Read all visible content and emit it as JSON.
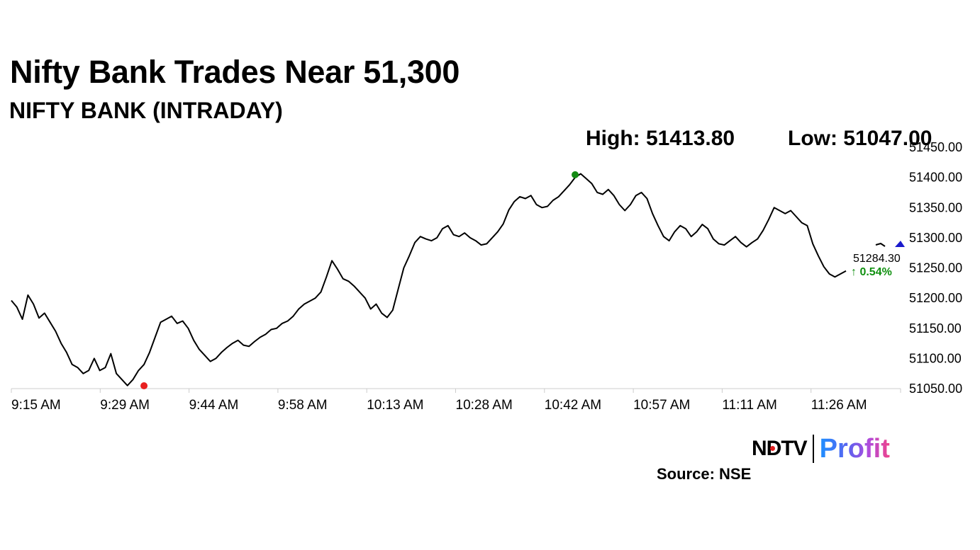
{
  "headline": "Nifty Bank Trades Near 51,300",
  "subtitle": "NIFTY BANK (INTRADAY)",
  "stats": {
    "high": "High: 51413.80",
    "low": "Low: 51047.00"
  },
  "last": {
    "price": "51284.30",
    "change": "↑ 0.54%"
  },
  "logo": {
    "ndtv": "NDTV",
    "profit": "Profit"
  },
  "source": "Source: NSE",
  "colors": {
    "line": "#000000",
    "low_marker": "#e82020",
    "high_marker": "#138a13",
    "last_marker": "#1a1acc",
    "change": "#109010",
    "axis": "#cccccc"
  },
  "chart_data": {
    "type": "line",
    "title": "NIFTY BANK (INTRADAY)",
    "xlabel": "",
    "ylabel": "",
    "x_ticks": [
      "9:15 AM",
      "9:29 AM",
      "9:44 AM",
      "9:58 AM",
      "10:13 AM",
      "10:28 AM",
      "10:42 AM",
      "10:57 AM",
      "11:11 AM",
      "11:26 AM"
    ],
    "y_ticks": [
      "51050.00",
      "51100.00",
      "51150.00",
      "51200.00",
      "51250.00",
      "51300.00",
      "51350.00",
      "51400.00",
      "51450.00"
    ],
    "ylim": [
      51050,
      51450
    ],
    "x_unit": "minutes after 9:15 AM",
    "xlim": [
      0,
      151
    ],
    "series": [
      {
        "values": [
          [
            0,
            51196
          ],
          [
            1,
            51185
          ],
          [
            2,
            51165
          ],
          [
            3,
            51205
          ],
          [
            4,
            51190
          ],
          [
            5,
            51167
          ],
          [
            6,
            51175
          ],
          [
            7,
            51160
          ],
          [
            8,
            51145
          ],
          [
            9,
            51125
          ],
          [
            10,
            51110
          ],
          [
            11,
            51090
          ],
          [
            12,
            51085
          ],
          [
            13,
            51075
          ],
          [
            14,
            51080
          ],
          [
            15,
            51100
          ],
          [
            16,
            51080
          ],
          [
            17,
            51085
          ],
          [
            18,
            51108
          ],
          [
            19,
            51075
          ],
          [
            20,
            51065
          ],
          [
            21,
            51055
          ],
          [
            22,
            51065
          ],
          [
            23,
            51080
          ],
          [
            24,
            51090
          ],
          [
            25,
            51110
          ],
          [
            26,
            51135
          ],
          [
            27,
            51160
          ],
          [
            28,
            51165
          ],
          [
            29,
            51170
          ],
          [
            30,
            51158
          ],
          [
            31,
            51162
          ],
          [
            32,
            51150
          ],
          [
            33,
            51130
          ],
          [
            34,
            51115
          ],
          [
            35,
            51105
          ],
          [
            36,
            51095
          ],
          [
            37,
            51100
          ],
          [
            38,
            51110
          ],
          [
            39,
            51118
          ],
          [
            40,
            51125
          ],
          [
            41,
            51130
          ],
          [
            42,
            51122
          ],
          [
            43,
            51120
          ],
          [
            44,
            51128
          ],
          [
            45,
            51135
          ],
          [
            46,
            51140
          ],
          [
            47,
            51148
          ],
          [
            48,
            51150
          ],
          [
            49,
            51158
          ],
          [
            50,
            51162
          ],
          [
            51,
            51170
          ],
          [
            52,
            51182
          ],
          [
            53,
            51190
          ],
          [
            54,
            51195
          ],
          [
            55,
            51200
          ],
          [
            56,
            51210
          ],
          [
            57,
            51235
          ],
          [
            58,
            51262
          ],
          [
            59,
            51248
          ],
          [
            60,
            51232
          ],
          [
            61,
            51228
          ],
          [
            62,
            51220
          ],
          [
            63,
            51210
          ],
          [
            64,
            51200
          ],
          [
            65,
            51182
          ],
          [
            66,
            51190
          ],
          [
            67,
            51175
          ],
          [
            68,
            51168
          ],
          [
            69,
            51180
          ],
          [
            70,
            51215
          ],
          [
            71,
            51250
          ],
          [
            72,
            51270
          ],
          [
            73,
            51292
          ],
          [
            74,
            51302
          ],
          [
            75,
            51298
          ],
          [
            76,
            51295
          ],
          [
            77,
            51300
          ],
          [
            78,
            51315
          ],
          [
            79,
            51320
          ],
          [
            80,
            51305
          ],
          [
            81,
            51302
          ],
          [
            82,
            51308
          ],
          [
            83,
            51300
          ],
          [
            84,
            51295
          ],
          [
            85,
            51288
          ],
          [
            86,
            51290
          ],
          [
            87,
            51300
          ],
          [
            88,
            51310
          ],
          [
            89,
            51323
          ],
          [
            90,
            51346
          ],
          [
            91,
            51360
          ],
          [
            92,
            51368
          ],
          [
            93,
            51365
          ],
          [
            94,
            51370
          ],
          [
            95,
            51355
          ],
          [
            96,
            51350
          ],
          [
            97,
            51352
          ],
          [
            98,
            51362
          ],
          [
            99,
            51368
          ],
          [
            100,
            51378
          ],
          [
            101,
            51388
          ],
          [
            102,
            51400
          ],
          [
            103,
            51406
          ],
          [
            104,
            51398
          ],
          [
            105,
            51390
          ],
          [
            106,
            51375
          ],
          [
            107,
            51372
          ],
          [
            108,
            51380
          ],
          [
            109,
            51370
          ],
          [
            110,
            51355
          ],
          [
            111,
            51345
          ],
          [
            112,
            51355
          ],
          [
            113,
            51370
          ],
          [
            114,
            51375
          ],
          [
            115,
            51365
          ],
          [
            116,
            51340
          ],
          [
            117,
            51320
          ],
          [
            118,
            51302
          ],
          [
            119,
            51295
          ],
          [
            120,
            51310
          ],
          [
            121,
            51320
          ],
          [
            122,
            51315
          ],
          [
            123,
            51302
          ],
          [
            124,
            51310
          ],
          [
            125,
            51322
          ],
          [
            126,
            51315
          ],
          [
            127,
            51298
          ],
          [
            128,
            51290
          ],
          [
            129,
            51288
          ],
          [
            130,
            51295
          ],
          [
            131,
            51302
          ],
          [
            132,
            51292
          ],
          [
            133,
            51285
          ],
          [
            134,
            51292
          ],
          [
            135,
            51298
          ],
          [
            136,
            51312
          ],
          [
            137,
            51330
          ],
          [
            138,
            51350
          ],
          [
            139,
            51345
          ],
          [
            140,
            51340
          ],
          [
            141,
            51345
          ],
          [
            142,
            51335
          ],
          [
            143,
            51325
          ],
          [
            144,
            51320
          ],
          [
            145,
            51290
          ],
          [
            146,
            51270
          ],
          [
            147,
            51252
          ],
          [
            148,
            51240
          ],
          [
            149,
            51235
          ],
          [
            150,
            51240
          ],
          [
            151,
            51245
          ]
        ]
      }
    ],
    "high": {
      "label": "High",
      "value": 51413.8,
      "x": 102
    },
    "low": {
      "label": "Low",
      "value": 51047.0,
      "x": 24
    },
    "last_value": 51284.3
  }
}
